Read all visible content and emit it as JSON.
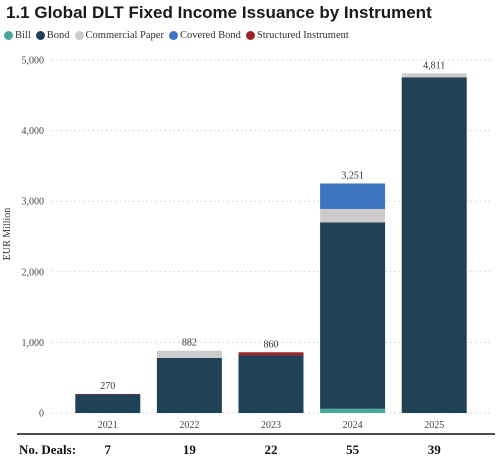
{
  "title": "1.1 Global DLT Fixed Income Issuance by Instrument",
  "chart_data": {
    "type": "bar",
    "stacked": true,
    "title": "1.1 Global DLT Fixed Income Issuance by Instrument",
    "ylabel": "EUR Million",
    "xlabel": "",
    "ylim": [
      0,
      5000
    ],
    "yticks": [
      0,
      1000,
      2000,
      3000,
      4000,
      5000
    ],
    "ytick_labels": [
      "0",
      "1,000",
      "2,000",
      "3,000",
      "4,000",
      "5,000"
    ],
    "grid": "horizontal dotted",
    "legend": "top-left",
    "categories": [
      "2021",
      "2022",
      "2023",
      "2024",
      "2025"
    ],
    "series": [
      {
        "name": "Bill",
        "color": "#4aa89a",
        "values": [
          0,
          0,
          0,
          60,
          0
        ]
      },
      {
        "name": "Bond",
        "color": "#1f4257",
        "values": [
          265,
          780,
          815,
          2640,
          4755
        ]
      },
      {
        "name": "Commercial Paper",
        "color": "#cccccc",
        "values": [
          0,
          102,
          0,
          190,
          56
        ]
      },
      {
        "name": "Covered Bond",
        "color": "#3f74c0",
        "values": [
          0,
          0,
          0,
          361,
          0
        ]
      },
      {
        "name": "Structured Instrument",
        "color": "#9b2226",
        "values": [
          5,
          0,
          45,
          0,
          0
        ]
      }
    ],
    "totals": [
      270,
      882,
      860,
      3251,
      4811
    ],
    "total_labels": [
      "270",
      "882",
      "860",
      "3,251",
      "4,811"
    ],
    "deals": {
      "label": "No. Deals:",
      "values": [
        "7",
        "19",
        "22",
        "55",
        "39"
      ]
    }
  }
}
